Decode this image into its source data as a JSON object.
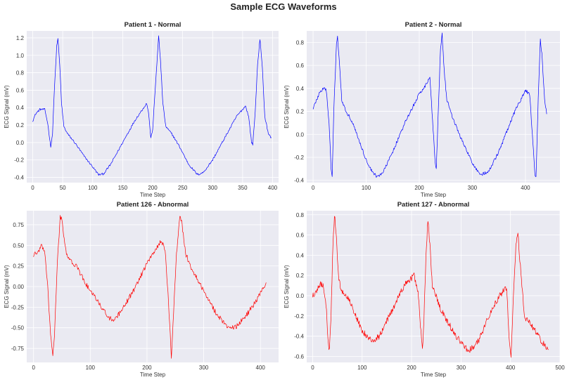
{
  "figure": {
    "suptitle": "Sample ECG Waveforms"
  },
  "chart_data": [
    {
      "type": "line",
      "title": "Patient 1 - Normal",
      "xlabel": "Time Step",
      "ylabel": "ECG Signal (mV)",
      "color": "#0000ff",
      "grid": true,
      "xlim": [
        -10,
        410
      ],
      "ylim": [
        -0.46,
        1.28
      ],
      "xticks": [
        0,
        50,
        100,
        150,
        200,
        250,
        300,
        350,
        400
      ],
      "yticks": [
        -0.4,
        -0.2,
        0.0,
        0.2,
        0.4,
        0.6,
        0.8,
        1.0,
        1.2
      ],
      "ytick_labels": [
        "-0.4",
        "-0.2",
        "0.0",
        "0.2",
        "0.4",
        "0.6",
        "0.8",
        "1.0",
        "1.2"
      ],
      "noise": 0.012,
      "keypoints": [
        [
          0,
          0.25
        ],
        [
          5,
          0.33
        ],
        [
          12,
          0.38
        ],
        [
          20,
          0.38
        ],
        [
          25,
          0.22
        ],
        [
          30,
          -0.05
        ],
        [
          33,
          0.1
        ],
        [
          36,
          0.6
        ],
        [
          40,
          1.1
        ],
        [
          42,
          1.19
        ],
        [
          45,
          0.9
        ],
        [
          48,
          0.45
        ],
        [
          52,
          0.18
        ],
        [
          58,
          0.1
        ],
        [
          70,
          0.0
        ],
        [
          85,
          -0.15
        ],
        [
          100,
          -0.28
        ],
        [
          110,
          -0.37
        ],
        [
          118,
          -0.36
        ],
        [
          130,
          -0.25
        ],
        [
          150,
          0.0
        ],
        [
          170,
          0.25
        ],
        [
          185,
          0.4
        ],
        [
          190,
          0.45
        ],
        [
          193,
          0.35
        ],
        [
          197,
          0.05
        ],
        [
          200,
          0.15
        ],
        [
          206,
          0.8
        ],
        [
          210,
          1.22
        ],
        [
          213,
          0.95
        ],
        [
          217,
          0.45
        ],
        [
          222,
          0.18
        ],
        [
          232,
          0.1
        ],
        [
          245,
          -0.05
        ],
        [
          260,
          -0.25
        ],
        [
          275,
          -0.37
        ],
        [
          285,
          -0.34
        ],
        [
          300,
          -0.2
        ],
        [
          320,
          0.05
        ],
        [
          340,
          0.3
        ],
        [
          355,
          0.42
        ],
        [
          360,
          0.3
        ],
        [
          365,
          0.0
        ],
        [
          367,
          -0.02
        ],
        [
          371,
          0.35
        ],
        [
          375,
          0.9
        ],
        [
          379,
          1.19
        ],
        [
          383,
          0.85
        ],
        [
          387,
          0.3
        ],
        [
          393,
          0.1
        ],
        [
          398,
          0.05
        ]
      ]
    },
    {
      "type": "line",
      "title": "Patient 2 - Normal",
      "xlabel": "Time Step",
      "ylabel": "ECG Signal (mV)",
      "color": "#0000ff",
      "grid": true,
      "xlim": [
        -12,
        465
      ],
      "ylim": [
        -0.42,
        0.9
      ],
      "xticks": [
        0,
        100,
        200,
        300,
        400
      ],
      "yticks": [
        -0.4,
        -0.2,
        0.0,
        0.2,
        0.4,
        0.6,
        0.8
      ],
      "ytick_labels": [
        "-0.4",
        "-0.2",
        "0.0",
        "0.2",
        "0.4",
        "0.6",
        "0.8"
      ],
      "noise": 0.014,
      "keypoints": [
        [
          0,
          0.23
        ],
        [
          5,
          0.28
        ],
        [
          12,
          0.36
        ],
        [
          20,
          0.4
        ],
        [
          25,
          0.38
        ],
        [
          30,
          0.1
        ],
        [
          34,
          -0.3
        ],
        [
          36,
          -0.36
        ],
        [
          39,
          0.2
        ],
        [
          44,
          0.8
        ],
        [
          46,
          0.85
        ],
        [
          50,
          0.6
        ],
        [
          54,
          0.3
        ],
        [
          60,
          0.22
        ],
        [
          75,
          0.1
        ],
        [
          90,
          -0.1
        ],
        [
          105,
          -0.28
        ],
        [
          120,
          -0.37
        ],
        [
          132,
          -0.33
        ],
        [
          150,
          -0.15
        ],
        [
          175,
          0.12
        ],
        [
          200,
          0.35
        ],
        [
          215,
          0.45
        ],
        [
          220,
          0.5
        ],
        [
          224,
          0.2
        ],
        [
          230,
          -0.25
        ],
        [
          232,
          -0.3
        ],
        [
          235,
          0.1
        ],
        [
          240,
          0.75
        ],
        [
          243,
          0.87
        ],
        [
          247,
          0.55
        ],
        [
          252,
          0.3
        ],
        [
          265,
          0.12
        ],
        [
          280,
          -0.05
        ],
        [
          300,
          -0.25
        ],
        [
          315,
          -0.35
        ],
        [
          330,
          -0.33
        ],
        [
          350,
          -0.15
        ],
        [
          380,
          0.2
        ],
        [
          400,
          0.38
        ],
        [
          408,
          0.35
        ],
        [
          413,
          0.0
        ],
        [
          418,
          -0.35
        ],
        [
          420,
          -0.38
        ],
        [
          424,
          0.3
        ],
        [
          428,
          0.82
        ],
        [
          431,
          0.7
        ],
        [
          436,
          0.3
        ],
        [
          440,
          0.19
        ]
      ]
    },
    {
      "type": "line",
      "title": "Patient 126 - Abnormal",
      "xlabel": "Time Step",
      "ylabel": "ECG Signal (mV)",
      "color": "#ff0000",
      "grid": true,
      "xlim": [
        -12,
        432
      ],
      "ylim": [
        -0.92,
        0.92
      ],
      "xticks": [
        0,
        100,
        200,
        300,
        400
      ],
      "yticks": [
        -0.75,
        -0.5,
        -0.25,
        0.0,
        0.25,
        0.5,
        0.75
      ],
      "ytick_labels": [
        "-0.75",
        "-0.50",
        "-0.25",
        "0.00",
        "0.25",
        "0.50",
        "0.75"
      ],
      "noise": 0.03,
      "keypoints": [
        [
          0,
          0.38
        ],
        [
          8,
          0.42
        ],
        [
          15,
          0.5
        ],
        [
          20,
          0.4
        ],
        [
          25,
          0.0
        ],
        [
          30,
          -0.6
        ],
        [
          34,
          -0.82
        ],
        [
          37,
          -0.6
        ],
        [
          42,
          0.3
        ],
        [
          47,
          0.85
        ],
        [
          50,
          0.82
        ],
        [
          55,
          0.5
        ],
        [
          60,
          0.35
        ],
        [
          75,
          0.25
        ],
        [
          95,
          0.0
        ],
        [
          115,
          -0.2
        ],
        [
          130,
          -0.35
        ],
        [
          140,
          -0.42
        ],
        [
          155,
          -0.3
        ],
        [
          180,
          0.0
        ],
        [
          205,
          0.35
        ],
        [
          225,
          0.55
        ],
        [
          232,
          0.45
        ],
        [
          238,
          -0.2
        ],
        [
          243,
          -0.85
        ],
        [
          247,
          -0.3
        ],
        [
          252,
          0.4
        ],
        [
          258,
          0.86
        ],
        [
          262,
          0.75
        ],
        [
          268,
          0.4
        ],
        [
          280,
          0.2
        ],
        [
          300,
          -0.05
        ],
        [
          320,
          -0.3
        ],
        [
          340,
          -0.48
        ],
        [
          355,
          -0.5
        ],
        [
          375,
          -0.35
        ],
        [
          395,
          -0.15
        ],
        [
          405,
          0.0
        ],
        [
          410,
          0.02
        ]
      ]
    },
    {
      "type": "line",
      "title": "Patient 127 - Abnormal",
      "xlabel": "Time Step",
      "ylabel": "ECG Signal (mV)",
      "color": "#ff0000",
      "grid": true,
      "xlim": [
        -12,
        500
      ],
      "ylim": [
        -0.66,
        0.84
      ],
      "xticks": [
        0,
        100,
        200,
        300,
        400,
        500
      ],
      "yticks": [
        -0.6,
        -0.4,
        -0.2,
        0.0,
        0.2,
        0.4,
        0.6,
        0.8
      ],
      "ytick_labels": [
        "-0.6",
        "-0.4",
        "-0.2",
        "0.0",
        "0.2",
        "0.4",
        "0.6",
        "0.8"
      ],
      "noise": 0.03,
      "keypoints": [
        [
          0,
          0.0
        ],
        [
          8,
          0.05
        ],
        [
          15,
          0.12
        ],
        [
          22,
          0.1
        ],
        [
          28,
          -0.15
        ],
        [
          32,
          -0.5
        ],
        [
          34,
          -0.55
        ],
        [
          37,
          -0.2
        ],
        [
          41,
          0.5
        ],
        [
          44,
          0.8
        ],
        [
          47,
          0.65
        ],
        [
          52,
          0.2
        ],
        [
          58,
          0.05
        ],
        [
          75,
          -0.05
        ],
        [
          100,
          -0.35
        ],
        [
          120,
          -0.45
        ],
        [
          135,
          -0.4
        ],
        [
          160,
          -0.15
        ],
        [
          185,
          0.1
        ],
        [
          205,
          0.2
        ],
        [
          213,
          0.05
        ],
        [
          218,
          -0.3
        ],
        [
          222,
          -0.55
        ],
        [
          225,
          -0.25
        ],
        [
          229,
          0.4
        ],
        [
          233,
          0.75
        ],
        [
          237,
          0.5
        ],
        [
          242,
          0.1
        ],
        [
          260,
          -0.15
        ],
        [
          290,
          -0.4
        ],
        [
          315,
          -0.55
        ],
        [
          335,
          -0.45
        ],
        [
          365,
          -0.1
        ],
        [
          390,
          0.08
        ],
        [
          393,
          0.02
        ],
        [
          397,
          -0.4
        ],
        [
          401,
          -0.6
        ],
        [
          405,
          -0.1
        ],
        [
          411,
          0.5
        ],
        [
          415,
          0.62
        ],
        [
          419,
          0.35
        ],
        [
          428,
          -0.2
        ],
        [
          450,
          -0.35
        ],
        [
          470,
          -0.5
        ],
        [
          477,
          -0.52
        ]
      ]
    }
  ]
}
